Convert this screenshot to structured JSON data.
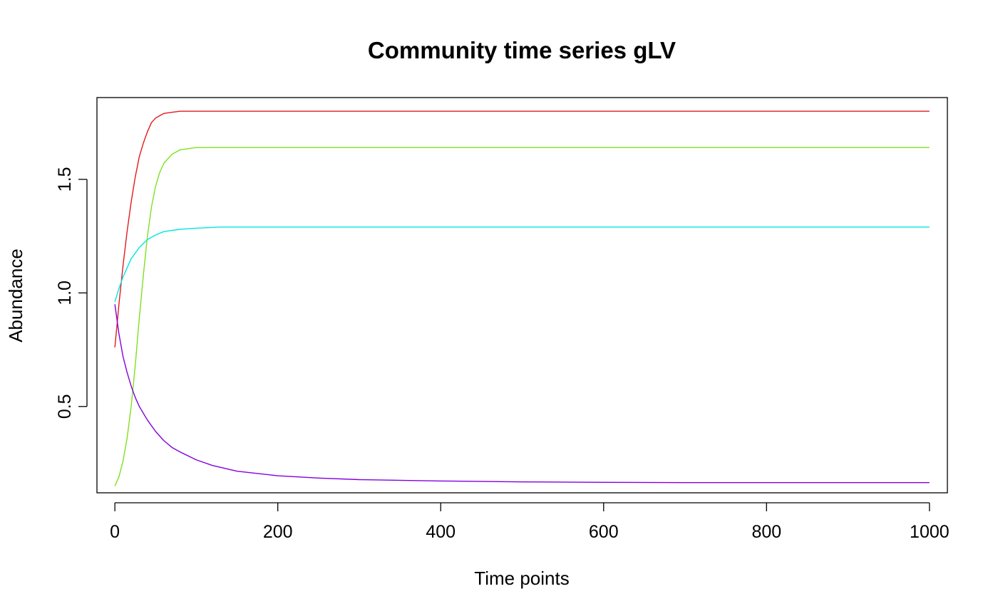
{
  "chart_data": {
    "type": "line",
    "title": "Community time series gLV",
    "xlabel": "Time points",
    "ylabel": "Abundance",
    "xlim": [
      -22,
      1022
    ],
    "ylim": [
      0.12,
      1.86
    ],
    "xticks": [
      0,
      200,
      400,
      600,
      800,
      1000
    ],
    "yticks": [
      0.5,
      1.0,
      1.5
    ],
    "xtick_labels": [
      "0",
      "200",
      "400",
      "600",
      "800",
      "1000"
    ],
    "ytick_labels": [
      "0.5",
      "1.0",
      "1.5"
    ],
    "grid": false,
    "legend": "none",
    "series": [
      {
        "color": "#e41a1c",
        "points": [
          [
            0,
            0.76
          ],
          [
            5,
            0.95
          ],
          [
            10,
            1.12
          ],
          [
            15,
            1.27
          ],
          [
            20,
            1.4
          ],
          [
            25,
            1.51
          ],
          [
            30,
            1.6
          ],
          [
            35,
            1.66
          ],
          [
            40,
            1.71
          ],
          [
            45,
            1.75
          ],
          [
            50,
            1.77
          ],
          [
            60,
            1.79
          ],
          [
            70,
            1.795
          ],
          [
            80,
            1.8
          ],
          [
            100,
            1.8
          ],
          [
            200,
            1.8
          ],
          [
            400,
            1.8
          ],
          [
            600,
            1.8
          ],
          [
            800,
            1.8
          ],
          [
            1000,
            1.8
          ]
        ]
      },
      {
        "color": "#80e020",
        "points": [
          [
            0,
            0.15
          ],
          [
            5,
            0.19
          ],
          [
            10,
            0.26
          ],
          [
            15,
            0.36
          ],
          [
            20,
            0.5
          ],
          [
            25,
            0.68
          ],
          [
            30,
            0.89
          ],
          [
            35,
            1.08
          ],
          [
            40,
            1.25
          ],
          [
            45,
            1.38
          ],
          [
            50,
            1.47
          ],
          [
            55,
            1.53
          ],
          [
            60,
            1.57
          ],
          [
            70,
            1.61
          ],
          [
            80,
            1.63
          ],
          [
            100,
            1.64
          ],
          [
            120,
            1.64
          ],
          [
            200,
            1.64
          ],
          [
            400,
            1.64
          ],
          [
            600,
            1.64
          ],
          [
            800,
            1.64
          ],
          [
            1000,
            1.64
          ]
        ]
      },
      {
        "color": "#00e5e5",
        "points": [
          [
            0,
            0.96
          ],
          [
            5,
            1.02
          ],
          [
            10,
            1.07
          ],
          [
            15,
            1.11
          ],
          [
            20,
            1.15
          ],
          [
            30,
            1.2
          ],
          [
            40,
            1.235
          ],
          [
            50,
            1.255
          ],
          [
            60,
            1.27
          ],
          [
            80,
            1.28
          ],
          [
            100,
            1.285
          ],
          [
            130,
            1.29
          ],
          [
            200,
            1.29
          ],
          [
            400,
            1.29
          ],
          [
            600,
            1.29
          ],
          [
            800,
            1.29
          ],
          [
            1000,
            1.29
          ]
        ]
      },
      {
        "color": "#8000e0",
        "points": [
          [
            0,
            0.95
          ],
          [
            5,
            0.82
          ],
          [
            10,
            0.72
          ],
          [
            15,
            0.65
          ],
          [
            20,
            0.59
          ],
          [
            25,
            0.54
          ],
          [
            30,
            0.5
          ],
          [
            40,
            0.44
          ],
          [
            50,
            0.39
          ],
          [
            60,
            0.35
          ],
          [
            70,
            0.32
          ],
          [
            80,
            0.3
          ],
          [
            100,
            0.265
          ],
          [
            120,
            0.24
          ],
          [
            150,
            0.215
          ],
          [
            200,
            0.195
          ],
          [
            250,
            0.185
          ],
          [
            300,
            0.178
          ],
          [
            400,
            0.172
          ],
          [
            500,
            0.168
          ],
          [
            600,
            0.166
          ],
          [
            700,
            0.165
          ],
          [
            800,
            0.165
          ],
          [
            1000,
            0.165
          ]
        ]
      }
    ]
  }
}
